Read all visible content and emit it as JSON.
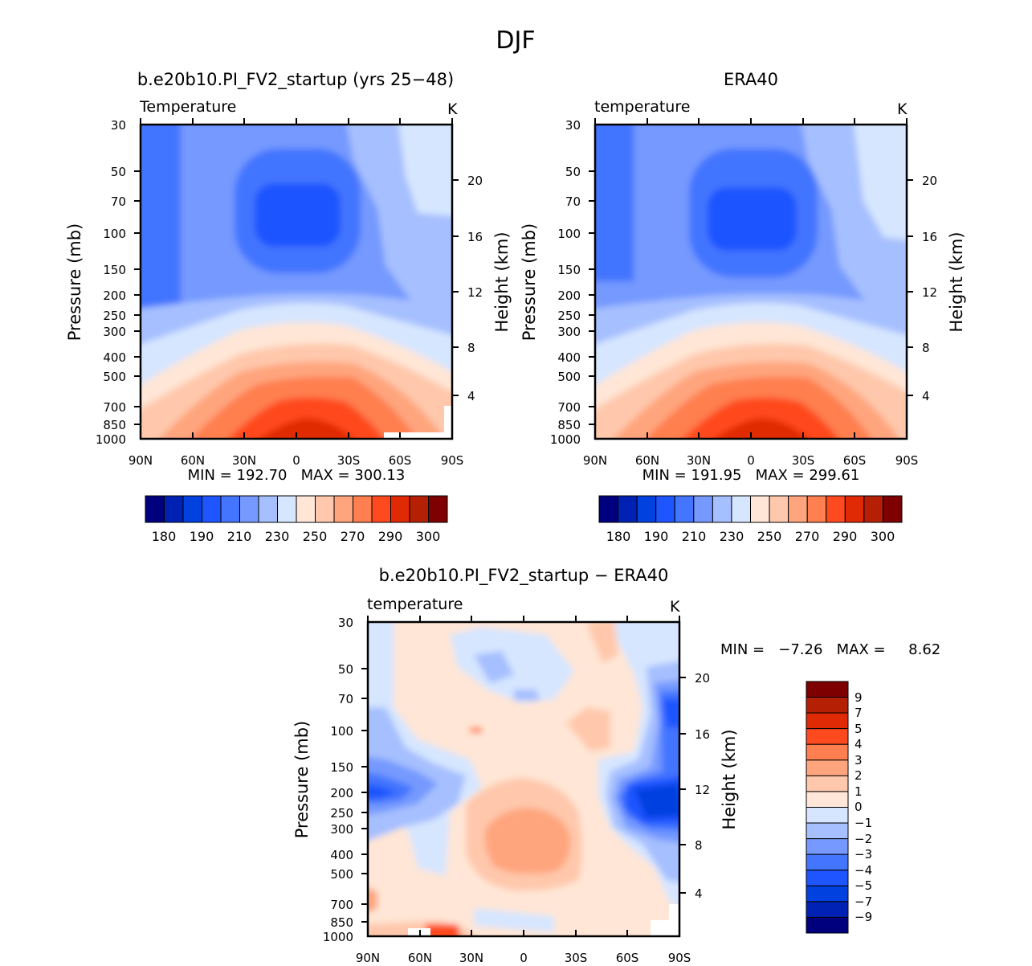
{
  "figure": {
    "title": "DJF"
  },
  "panels": [
    {
      "id": "model",
      "title": "b.e20b10.PI_FV2_startup (yrs 25−48)",
      "variable": "Temperature",
      "units": "K",
      "ylabel": "Pressure (mb)",
      "y2label": "Height (km)",
      "min_max": "MIN = 192.70   MAX = 300.13",
      "colorbar": {
        "labels": [
          "180",
          "190",
          "210",
          "230",
          "250",
          "270",
          "290",
          "300"
        ]
      }
    },
    {
      "id": "era40",
      "title": "ERA40",
      "variable": "temperature",
      "units": "K",
      "ylabel": "Pressure (mb)",
      "y2label": "Height (km)",
      "min_max": "MIN = 191.95   MAX = 299.61",
      "colorbar": {
        "labels": [
          "180",
          "190",
          "210",
          "230",
          "250",
          "270",
          "290",
          "300"
        ]
      }
    },
    {
      "id": "diff",
      "title": "b.e20b10.PI_FV2_startup − ERA40",
      "variable": "temperature",
      "units": "K",
      "ylabel": "Pressure (mb)",
      "y2label": "Height (km)",
      "min_max": "MIN =   −7.26   MAX =     8.62",
      "colorbar": {
        "labels": [
          "9",
          "7",
          "5",
          "4",
          "3",
          "2",
          "1",
          "0",
          "−1",
          "−2",
          "−3",
          "−4",
          "−5",
          "−7",
          "−9"
        ]
      }
    }
  ],
  "colors": {
    "temp_scale": [
      "#00007f",
      "#0022b4",
      "#0041e0",
      "#1e55ff",
      "#4375ff",
      "#7599ff",
      "#a6bfff",
      "#d6e6ff",
      "#ffe6d6",
      "#ffc8ac",
      "#ffa57e",
      "#ff7f50",
      "#ff4a1f",
      "#e02a05",
      "#b52005",
      "#7f0000"
    ],
    "diff_scale": [
      "#7f0000",
      "#b52005",
      "#e02a05",
      "#ff4a1f",
      "#ff7f50",
      "#ffa57e",
      "#ffc8ac",
      "#ffe6d6",
      "#d6e6ff",
      "#a6bfff",
      "#7599ff",
      "#4375ff",
      "#1e55ff",
      "#0041e0",
      "#0022b4",
      "#00007f"
    ]
  },
  "chart_data": [
    {
      "type": "heatmap",
      "panel": "model",
      "x_ticks": [
        "90N",
        "60N",
        "30N",
        "0",
        "30S",
        "60S",
        "90S"
      ],
      "y_ticks": [
        30,
        50,
        70,
        100,
        150,
        200,
        250,
        300,
        400,
        500,
        700,
        850,
        1000
      ],
      "y2_ticks": [
        20,
        16,
        12,
        8,
        4
      ],
      "y_scale": "log",
      "ylim": [
        1000,
        30
      ],
      "xlim": [
        "90N",
        "90S"
      ],
      "values_K": {
        "min": 192.7,
        "max": 300.13
      }
    },
    {
      "type": "heatmap",
      "panel": "era40",
      "x_ticks": [
        "90N",
        "60N",
        "30N",
        "0",
        "30S",
        "60S",
        "90S"
      ],
      "y_ticks": [
        30,
        50,
        70,
        100,
        150,
        200,
        250,
        300,
        400,
        500,
        700,
        850,
        1000
      ],
      "y2_ticks": [
        20,
        16,
        12,
        8,
        4
      ],
      "y_scale": "log",
      "ylim": [
        1000,
        30
      ],
      "xlim": [
        "90N",
        "90S"
      ],
      "values_K": {
        "min": 191.95,
        "max": 299.61
      }
    },
    {
      "type": "heatmap",
      "panel": "diff",
      "x_ticks": [
        "90N",
        "60N",
        "30N",
        "0",
        "30S",
        "60S",
        "90S"
      ],
      "y_ticks": [
        30,
        50,
        70,
        100,
        150,
        200,
        250,
        300,
        400,
        500,
        700,
        850,
        1000
      ],
      "y2_ticks": [
        20,
        16,
        12,
        8,
        4
      ],
      "y_scale": "log",
      "ylim": [
        1000,
        30
      ],
      "xlim": [
        "90N",
        "90S"
      ],
      "values_K": {
        "min": -7.26,
        "max": 8.62
      }
    }
  ]
}
